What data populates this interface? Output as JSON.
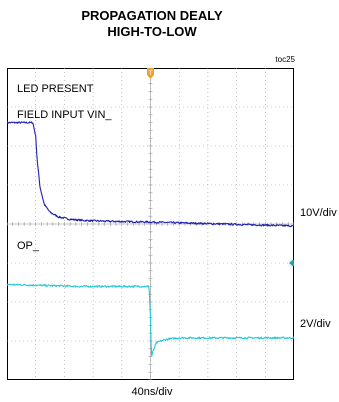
{
  "title_line1": "PROPAGATION DEALY",
  "title_line2": "HIGH-TO-LOW",
  "figure_id": "toc25",
  "chart_data": {
    "type": "line",
    "title": "PROPAGATION DEALY HIGH-TO-LOW",
    "x_label": "40ns/div",
    "x_divisions": 10,
    "y_divisions": 8,
    "x_range_div": [
      -5,
      5
    ],
    "grid": true,
    "text_labels": [
      "LED PRESENT",
      "FIELD INPUT VIN_",
      "OP_"
    ],
    "series": [
      {
        "name": "FIELD INPUT VIN_",
        "color": "#2020b0",
        "scale": "10V/div",
        "x_div": [
          -5.0,
          -4.1,
          -4.0,
          -3.95,
          -3.85,
          -3.7,
          -3.5,
          -3.2,
          -2.8,
          -2.3,
          -1.5,
          0,
          2.5,
          5.0
        ],
        "y_div": [
          2.6,
          2.6,
          2.25,
          1.65,
          0.95,
          0.5,
          0.3,
          0.18,
          0.12,
          0.09,
          0.07,
          0.05,
          0.0,
          -0.05
        ]
      },
      {
        "name": "OP_",
        "color": "#20c8d8",
        "scale": "2V/div",
        "x_div": [
          -5.0,
          -2.5,
          -0.05,
          0.0,
          0.03,
          0.1,
          0.2,
          0.35,
          0.6,
          1.0,
          2.0,
          3.5,
          5.0
        ],
        "y_div": [
          -1.55,
          -1.6,
          -1.6,
          -2.4,
          -3.4,
          -3.25,
          -3.05,
          -3.0,
          -2.95,
          -2.92,
          -2.92,
          -2.92,
          -2.92
        ]
      }
    ]
  },
  "scale_ch1": "10V/div",
  "scale_ch2": "2V/div",
  "timebase": "40ns/div",
  "labels": {
    "led": "LED PRESENT",
    "field_input": "FIELD INPUT VIN_",
    "op": "OP_"
  },
  "markers": {
    "trigger": "T"
  }
}
